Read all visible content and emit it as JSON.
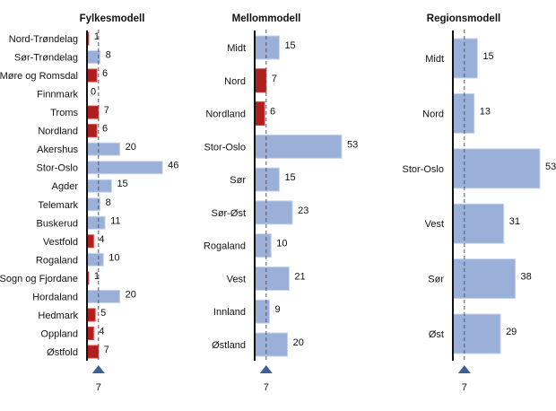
{
  "colors": {
    "above": "#9ab0d8",
    "above_stroke": "#c9d6ec",
    "below": "#b01e1e",
    "marker": "#3e5f93",
    "axis": "#111111",
    "reference": "#555555"
  },
  "chart_data": [
    {
      "type": "bar",
      "orientation": "horizontal",
      "title": "Fylkesmodell",
      "reference_value": 7,
      "reference_label": "7",
      "categories": [
        "Nord-Trøndelag",
        "Sør-Trøndelag",
        "Møre og Romsdal",
        "Finnmark",
        "Troms",
        "Nordland",
        "Akershus",
        "Stor-Oslo",
        "Agder",
        "Telemark",
        "Buskerud",
        "Vestfold",
        "Rogaland",
        "Sogn og Fjordane",
        "Hordaland",
        "Hedmark",
        "Oppland",
        "Østfold"
      ],
      "values": [
        1,
        8,
        6,
        0,
        7,
        6,
        20,
        46,
        15,
        8,
        11,
        4,
        10,
        1,
        20,
        5,
        4,
        7
      ],
      "labels": [
        "1",
        "8",
        "6",
        "0",
        "7",
        "6",
        "20",
        "46",
        "15",
        "8",
        "11",
        "4",
        "10",
        "1",
        "20",
        "5",
        "4",
        "7"
      ],
      "bar_colors": [
        "#b01e1e",
        "#9ab0d8",
        "#b01e1e",
        "#b01e1e",
        "#b01e1e",
        "#b01e1e",
        "#9ab0d8",
        "#9ab0d8",
        "#9ab0d8",
        "#9ab0d8",
        "#9ab0d8",
        "#b01e1e",
        "#9ab0d8",
        "#b01e1e",
        "#9ab0d8",
        "#b01e1e",
        "#b01e1e",
        "#b01e1e"
      ]
    },
    {
      "type": "bar",
      "orientation": "horizontal",
      "title": "Mellommodell",
      "reference_value": 7,
      "reference_label": "7",
      "categories": [
        "Midt",
        "Nord",
        "Nordland",
        "Stor-Oslo",
        "Sør",
        "Sør-Øst",
        "Rogaland",
        "Vest",
        "Innland",
        "Østland"
      ],
      "values": [
        15,
        7,
        6,
        53,
        15,
        23,
        10,
        21,
        9,
        20
      ],
      "labels": [
        "15",
        "7",
        "6",
        "53",
        "15",
        "23",
        "10",
        "21",
        "9",
        "20"
      ],
      "bar_colors": [
        "#9ab0d8",
        "#b01e1e",
        "#b01e1e",
        "#9ab0d8",
        "#9ab0d8",
        "#9ab0d8",
        "#9ab0d8",
        "#9ab0d8",
        "#9ab0d8",
        "#9ab0d8"
      ]
    },
    {
      "type": "bar",
      "orientation": "horizontal",
      "title": "Regionsmodell",
      "reference_value": 7,
      "reference_label": "7",
      "categories": [
        "Midt",
        "Nord",
        "Stor-Oslo",
        "Vest",
        "Sør",
        "Øst"
      ],
      "values": [
        15,
        13,
        53,
        31,
        38,
        29
      ],
      "labels": [
        "15",
        "13",
        "53",
        "31",
        "38",
        "29"
      ],
      "bar_colors": [
        "#9ab0d8",
        "#9ab0d8",
        "#9ab0d8",
        "#9ab0d8",
        "#9ab0d8",
        "#9ab0d8"
      ]
    }
  ]
}
